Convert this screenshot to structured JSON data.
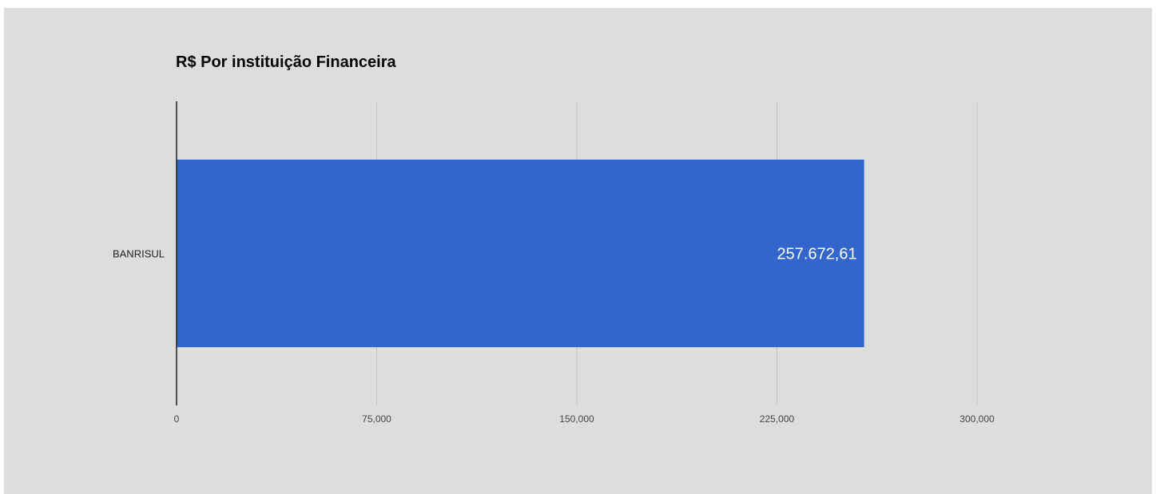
{
  "chart_data": {
    "type": "bar",
    "orientation": "horizontal",
    "title": "R$ Por instituição Financeira",
    "categories": [
      "BANRISUL"
    ],
    "values": [
      257672.61
    ],
    "data_labels": [
      "257.672,61"
    ],
    "x_ticks": [
      "0",
      "75,000",
      "150,000",
      "225,000",
      "300,000"
    ],
    "x_tick_values": [
      0,
      75000,
      150000,
      225000,
      300000
    ],
    "xlim": [
      0,
      300000
    ],
    "xlabel": "",
    "ylabel": "",
    "grid": true,
    "legend": "none",
    "colors": {
      "bar": "#3366cc",
      "background": "#dddddd",
      "gridline": "#c4c4c4",
      "axis": "#222222"
    }
  }
}
